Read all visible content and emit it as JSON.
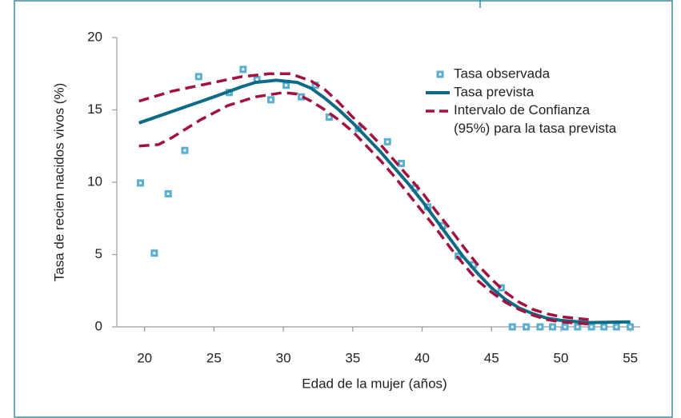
{
  "chart_data": {
    "type": "line",
    "xlabel": "Edad de la mujer (años)",
    "ylabel": "Tasa de recien nacidos vivos (%)",
    "xlim": [
      18,
      56
    ],
    "ylim": [
      0,
      20
    ],
    "xticks": [
      20,
      25,
      30,
      35,
      40,
      45,
      50,
      55
    ],
    "yticks": [
      0,
      5,
      10,
      15,
      20
    ],
    "legend": "upper right",
    "series": [
      {
        "name": "Tasa observada",
        "style": "markers",
        "color": "#5aaed0",
        "x": [
          19.7,
          20.7,
          21.7,
          22.9,
          23.9,
          26.1,
          27.1,
          28.1,
          29.1,
          30.2,
          31.3,
          32.3,
          33.3,
          35.4,
          37.5,
          38.5,
          39.5,
          40.4,
          41.5,
          42.6,
          43.7,
          45.7,
          46.5,
          47.5,
          48.5,
          49.4,
          50.3,
          51.2,
          52.2,
          53.1,
          54.0,
          55.0
        ],
        "values": [
          9.95,
          5.1,
          9.2,
          12.2,
          17.3,
          16.2,
          17.8,
          17.1,
          15.7,
          16.7,
          15.9,
          16.7,
          14.5,
          13.7,
          12.8,
          11.3,
          9.6,
          8.3,
          7.0,
          4.9,
          4.3,
          2.7,
          0,
          0,
          0,
          0,
          0,
          0,
          0,
          0,
          0,
          0
        ]
      },
      {
        "name": "Tasa prevista",
        "style": "solid",
        "color": "#0e6b87",
        "x": [
          19.6,
          22,
          25,
          27,
          28,
          29.5,
          31,
          32,
          33,
          34,
          35,
          36,
          37,
          38,
          39,
          40,
          41,
          42,
          43,
          44,
          45,
          46,
          47,
          48,
          49,
          50,
          52,
          55
        ],
        "values": [
          14.1,
          14.9,
          15.9,
          16.6,
          16.9,
          17.05,
          16.9,
          16.5,
          15.8,
          15.0,
          14.1,
          13.1,
          12.1,
          11.0,
          9.9,
          8.7,
          7.4,
          6.1,
          4.8,
          3.7,
          2.7,
          1.9,
          1.3,
          0.9,
          0.6,
          0.45,
          0.3,
          0.35
        ]
      },
      {
        "name": "Intervalo de Confianza\n(95%) para la tasa prevista",
        "style": "dashed",
        "color": "#a3123f",
        "x": [
          19.6,
          22,
          25,
          27,
          29,
          30.5,
          32,
          33,
          34,
          35,
          36,
          37,
          38,
          39,
          40,
          41,
          42,
          43,
          44,
          45,
          46,
          47,
          48,
          49,
          50,
          52
        ],
        "values": [
          15.6,
          16.3,
          16.9,
          17.3,
          17.5,
          17.5,
          17.0,
          16.4,
          15.5,
          14.5,
          13.6,
          12.6,
          11.5,
          10.4,
          9.3,
          8.0,
          6.8,
          5.5,
          4.3,
          3.3,
          2.4,
          1.7,
          1.2,
          0.9,
          0.7,
          0.5
        ]
      },
      {
        "style": "dashed",
        "color": "#a3123f",
        "x": [
          19.6,
          21,
          22,
          24,
          26,
          28,
          30,
          31,
          32,
          33,
          34,
          35,
          36,
          37,
          38,
          39,
          40,
          41,
          42,
          43,
          44,
          45,
          46,
          47,
          48,
          49,
          50,
          52
        ],
        "values": [
          12.5,
          12.6,
          13.1,
          14.3,
          15.3,
          15.9,
          16.2,
          16.1,
          15.6,
          15.0,
          14.3,
          13.5,
          12.5,
          11.5,
          10.4,
          9.2,
          8.0,
          6.8,
          5.5,
          4.3,
          3.2,
          2.4,
          1.7,
          1.2,
          0.8,
          0.5,
          0.35,
          0.2
        ]
      }
    ]
  }
}
